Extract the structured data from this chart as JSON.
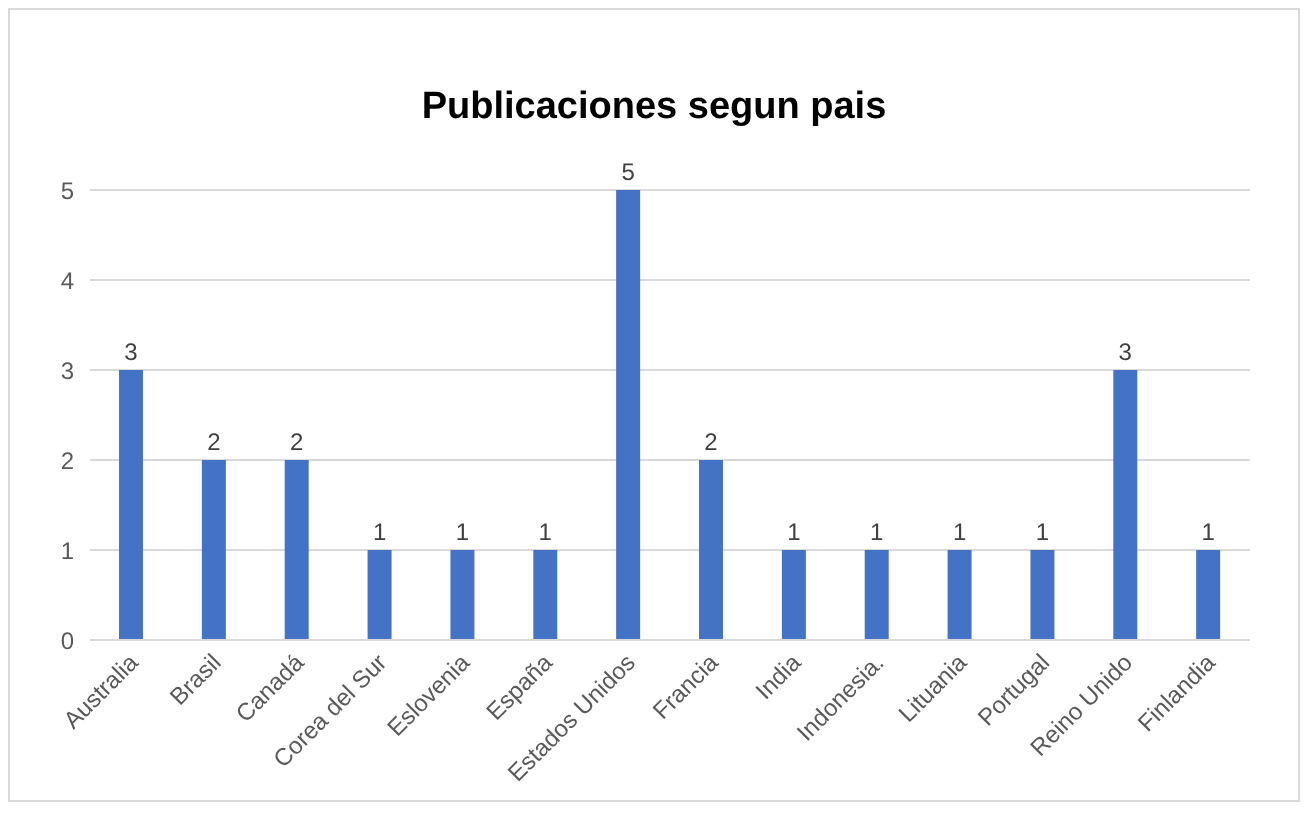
{
  "chart_data": {
    "type": "bar",
    "title": "Publicaciones segun pais",
    "categories": [
      "Australia",
      "Brasil",
      "Canadá",
      "Corea del Sur",
      "Eslovenia",
      "España",
      "Estados Unidos",
      "Francia",
      "India",
      "Indonesia.",
      "Lituania",
      "Portugal",
      "Reino Unido",
      "Finlandia"
    ],
    "values": [
      3,
      2,
      2,
      1,
      1,
      1,
      5,
      2,
      1,
      1,
      1,
      1,
      3,
      1
    ],
    "color": "#4472c4",
    "ylim": [
      0,
      5
    ],
    "yticks": [
      0,
      1,
      2,
      3,
      4,
      5
    ],
    "grid": "y",
    "data_labels": true
  }
}
